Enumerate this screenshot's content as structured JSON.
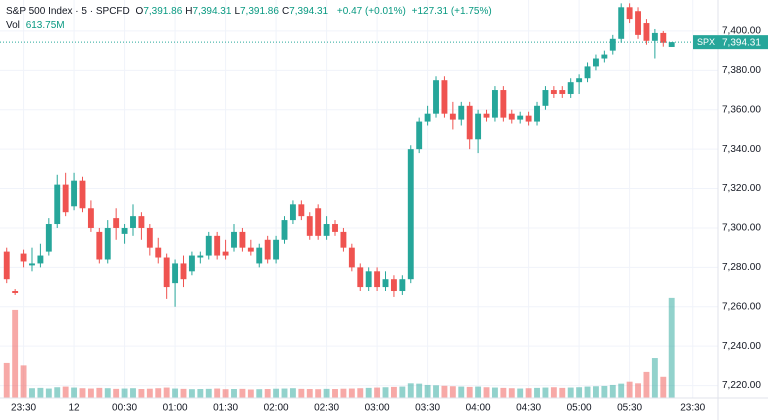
{
  "chart_data": {
    "type": "candlestick",
    "legend": {
      "symbol": "S&P 500 Index · 5 · SPCFD",
      "ohlc": [
        {
          "label": "O",
          "value": "7,391.86"
        },
        {
          "label": "H",
          "value": "7,394.31"
        },
        {
          "label": "L",
          "value": "7,391.86"
        },
        {
          "label": "C",
          "value": "7,394.31"
        }
      ],
      "change": "+0.47 (+0.01%)",
      "change_session": "+127.31 (+1.75%)",
      "vol_label": "Vol",
      "vol_value": "613.75M"
    },
    "last_price": {
      "name": "SPX",
      "label": "7,394.31",
      "value": 7394.31
    },
    "up_color": "#26a69a",
    "down_color": "#ef5350",
    "xlim": [
      -0.8,
      84.5
    ],
    "xticks": [
      {
        "value": 2,
        "label": "23:30"
      },
      {
        "value": 8,
        "label": "12"
      },
      {
        "value": 14,
        "label": "00:30"
      },
      {
        "value": 20,
        "label": "01:00"
      },
      {
        "value": 26,
        "label": "01:30"
      },
      {
        "value": 32,
        "label": "02:00"
      },
      {
        "value": 38,
        "label": "02:30"
      },
      {
        "value": 44,
        "label": "03:00"
      },
      {
        "value": 50,
        "label": "03:30"
      },
      {
        "value": 56,
        "label": "04:00"
      },
      {
        "value": 62,
        "label": "04:30"
      },
      {
        "value": 68,
        "label": "05:00"
      },
      {
        "value": 74,
        "label": "05:30"
      },
      {
        "value": 81.5,
        "label": "23:30"
      }
    ],
    "ylim": [
      7213.7,
      7415.7
    ],
    "yticks": [
      {
        "value": 7220,
        "label": "7,220.00"
      },
      {
        "value": 7240,
        "label": "7,240.00"
      },
      {
        "value": 7260,
        "label": "7,260.00"
      },
      {
        "value": 7280,
        "label": "7,280.00"
      },
      {
        "value": 7300,
        "label": "7,300.00"
      },
      {
        "value": 7320,
        "label": "7,320.00"
      },
      {
        "value": 7340,
        "label": "7,340.00"
      },
      {
        "value": 7360,
        "label": "7,360.00"
      },
      {
        "value": 7380,
        "label": "7,380.00"
      },
      {
        "value": 7400,
        "label": "7,400.00"
      }
    ],
    "vlim": [
      0,
      2440
    ],
    "open": [
      7288,
      7268,
      7287,
      7281,
      7282,
      7288,
      7302,
      7322,
      7311,
      7324,
      7310,
      7298,
      7284,
      7305,
      7297,
      7300,
      7306,
      7300,
      7290,
      7285,
      7272,
      7282,
      7278,
      7285,
      7286,
      7296,
      7288,
      7290,
      7298,
      7290,
      7282,
      7294,
      7284,
      7294,
      7304,
      7312,
      7306,
      7310,
      7296,
      7302,
      7298,
      7290,
      7280,
      7270,
      7278,
      7270,
      7274,
      7268,
      7274,
      7340,
      7354,
      7358,
      7375,
      7358,
      7355,
      7362,
      7345,
      7358,
      7356,
      7370,
      7358,
      7355,
      7357,
      7354,
      7362,
      7370,
      7370,
      7368,
      7374,
      7376,
      7382,
      7386,
      7390,
      7396,
      7412,
      7410,
      7404,
      7395,
      7399,
      7391.86
    ],
    "high": [
      7290,
      7269,
      7289,
      7290,
      7292,
      7305,
      7327,
      7328,
      7328,
      7326,
      7314,
      7300,
      7304,
      7310,
      7302,
      7312,
      7308,
      7302,
      7295,
      7287,
      7284,
      7286,
      7288,
      7288,
      7298,
      7298,
      7294,
      7302,
      7300,
      7294,
      7292,
      7296,
      7296,
      7306,
      7314,
      7314,
      7308,
      7312,
      7306,
      7304,
      7300,
      7292,
      7282,
      7280,
      7280,
      7278,
      7276,
      7276,
      7342,
      7356,
      7362,
      7377,
      7377,
      7364,
      7364,
      7364,
      7360,
      7360,
      7372,
      7372,
      7360,
      7359,
      7359,
      7364,
      7372,
      7372,
      7372,
      7376,
      7378,
      7384,
      7388,
      7390,
      7398,
      7414,
      7414,
      7412,
      7406,
      7401,
      7400,
      7394.31
    ],
    "low": [
      7272,
      7266,
      7280,
      7278,
      7280,
      7286,
      7300,
      7306,
      7309,
      7308,
      7298,
      7282,
      7282,
      7294,
      7292,
      7296,
      7294,
      7286,
      7282,
      7264,
      7260,
      7270,
      7276,
      7282,
      7284,
      7284,
      7284,
      7288,
      7288,
      7286,
      7280,
      7282,
      7282,
      7292,
      7302,
      7304,
      7294,
      7294,
      7294,
      7296,
      7288,
      7278,
      7268,
      7268,
      7268,
      7268,
      7265,
      7266,
      7272,
      7338,
      7352,
      7356,
      7356,
      7350,
      7352,
      7340,
      7338,
      7354,
      7354,
      7354,
      7353,
      7353,
      7352,
      7352,
      7360,
      7366,
      7366,
      7366,
      7368,
      7374,
      7380,
      7384,
      7388,
      7394,
      7404,
      7396,
      7393,
      7386,
      7392,
      7391.86
    ],
    "close": [
      7274,
      7267,
      7283,
      7282,
      7286,
      7302,
      7322,
      7308,
      7324,
      7310,
      7300,
      7284,
      7300,
      7300,
      7300,
      7306,
      7300,
      7290,
      7285,
      7270,
      7282,
      7274,
      7286,
      7286,
      7296,
      7286,
      7286,
      7298,
      7290,
      7288,
      7290,
      7284,
      7294,
      7304,
      7312,
      7306,
      7296,
      7296,
      7302,
      7298,
      7290,
      7280,
      7270,
      7278,
      7270,
      7274,
      7268,
      7274,
      7340,
      7354,
      7358,
      7375,
      7358,
      7355,
      7362,
      7345,
      7358,
      7356,
      7370,
      7356,
      7355,
      7357,
      7354,
      7362,
      7370,
      7368,
      7368,
      7374,
      7376,
      7382,
      7386,
      7388,
      7396,
      7412,
      7406,
      7398,
      7395,
      7399,
      7394,
      7394.31
    ],
    "volume": [
      215,
      540,
      200,
      60,
      62,
      58,
      66,
      70,
      64,
      60,
      58,
      62,
      60,
      56,
      58,
      60,
      55,
      57,
      60,
      64,
      58,
      56,
      54,
      55,
      56,
      58,
      54,
      55,
      56,
      52,
      54,
      55,
      57,
      58,
      60,
      56,
      55,
      54,
      56,
      55,
      57,
      58,
      60,
      62,
      64,
      66,
      68,
      70,
      90,
      88,
      80,
      78,
      75,
      72,
      70,
      68,
      70,
      66,
      64,
      62,
      60,
      58,
      60,
      62,
      64,
      66,
      62,
      64,
      66,
      70,
      72,
      74,
      80,
      88,
      100,
      90,
      160,
      245,
      130,
      613.75
    ]
  }
}
